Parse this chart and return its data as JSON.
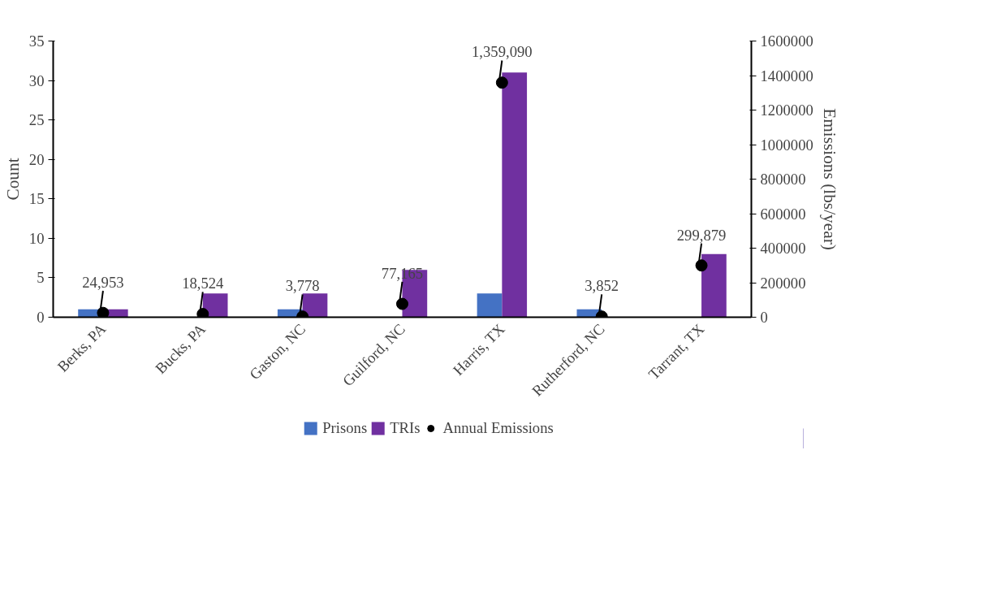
{
  "chart_data": {
    "type": "bar",
    "categories": [
      "Berks, PA",
      "Bucks, PA",
      "Gaston, NC",
      "Guilford, NC",
      "Harris, TX",
      "Rutherford, NC",
      "Tarrant, TX"
    ],
    "ylabel": "Count",
    "y2label": "Emissions (lbs/year)",
    "ylim": [
      0,
      35
    ],
    "yticks": [
      0,
      5,
      10,
      15,
      20,
      25,
      30,
      35
    ],
    "y2lim": [
      0,
      1600000
    ],
    "y2ticks": [
      0,
      200000,
      400000,
      600000,
      800000,
      1000000,
      1200000,
      1400000,
      1600000
    ],
    "series": [
      {
        "name": "Prisons",
        "color": "#4472c4",
        "values": [
          1,
          0,
          1,
          0,
          3,
          1,
          0
        ]
      },
      {
        "name": "TRIs",
        "color": "#7030a0",
        "values": [
          1,
          3,
          3,
          6,
          31,
          0,
          8
        ]
      },
      {
        "name": "Annual Emissions",
        "type": "scatter",
        "axis": "y2",
        "color": "#000000",
        "marker": "circle",
        "values": [
          24953,
          18524,
          3778,
          77165,
          1359090,
          3852,
          299879
        ],
        "value_labels": [
          "24,953",
          "18,524",
          "3,778",
          "77,165",
          "1,359,090",
          "3,852",
          "299,879"
        ]
      }
    ],
    "legend": "bottom",
    "grid": false
  }
}
